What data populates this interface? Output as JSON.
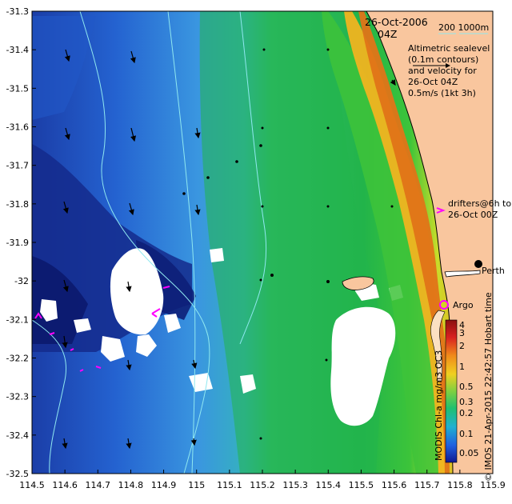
{
  "header": {
    "date": "26-Oct-2006",
    "time": "04Z",
    "isobath_labels": "200  1000m",
    "sealevel_text": [
      "Altimetric sealevel",
      "(0.1m contours)",
      "and velocity for",
      "26-Oct 04Z"
    ],
    "velocity_scale": "0.5m/s (1kt 3h)"
  },
  "legend": {
    "drifters": [
      "drifters@6h to",
      "26-Oct 00Z"
    ],
    "argo": "Argo",
    "city": "Perth",
    "credit_vertical": "© IMOS 21-Apr-2015 22:42:57 Hobart time",
    "product_vertical": "MODIS Chl-a mg/m3 OC3"
  },
  "colorbar": {
    "ticks": [
      "4",
      "3",
      "2",
      "1",
      "0.5",
      "0.3",
      "0.2",
      "0.1",
      "0.05"
    ]
  },
  "axes": {
    "x_ticks": [
      "114.5",
      "114.6",
      "114.7",
      "114.8",
      "114.9",
      "115",
      "115.1",
      "115.2",
      "115.3",
      "115.4",
      "115.5",
      "115.6",
      "115.7",
      "115.8",
      "115.9"
    ],
    "y_ticks": [
      "-31.3",
      "-31.4",
      "-31.5",
      "-31.6",
      "-31.7",
      "-31.8",
      "-31.9",
      "-32",
      "-32.1",
      "-32.2",
      "-32.3",
      "-32.4",
      "-32.5"
    ]
  },
  "colors": {
    "land": "#f9c69e",
    "isobath": "#8fe8f0",
    "drifter": "#ff00ff",
    "argo": "#ff00ff",
    "deep_water": "#0a1f8f",
    "mid_water": "#2f7de6",
    "shelf_water": "#1fb84a",
    "coastal_water": "#e8b020"
  }
}
